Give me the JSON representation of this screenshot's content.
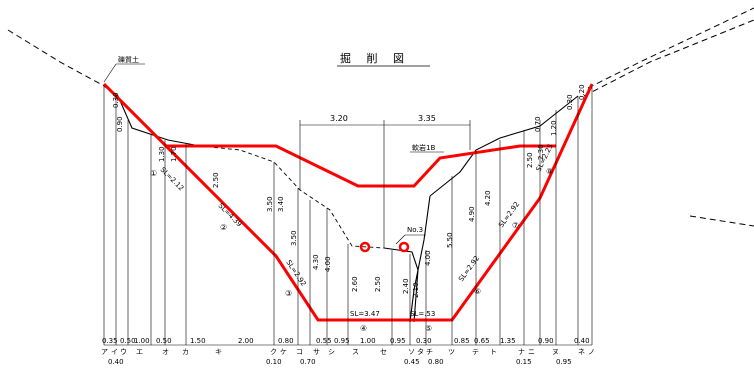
{
  "title": "掘 削 図",
  "annotations": {
    "soil_upper": "礫質土",
    "rock": "軟岩1B",
    "point_no": "No.3"
  },
  "top_dims": {
    "left": "3.20",
    "right": "3.35"
  },
  "slopes": {
    "s1": "SL=2.12",
    "s2": "SL=4.39",
    "s3": "SL=2.92",
    "s4": "SL=3.47",
    "s5": "SL=.53",
    "s6": "SL=2.92",
    "s7": "SL=2.92",
    "s8": "SL=2.25"
  },
  "circled": [
    "①",
    "②",
    "③",
    "④",
    "⑤",
    "⑥",
    "⑦",
    "⑧"
  ],
  "verticals": {
    "v1": "0.30",
    "v2": "0.90",
    "v3": "1.30",
    "v4": "1.70",
    "v5": "2.50",
    "v6": "3.50",
    "v7": "3.40",
    "v8": "3.50",
    "v9": "4.30",
    "v10": "4.00",
    "v11": "2.60",
    "v12": "2.50",
    "v13": "2.40",
    "v14": "2.10",
    "v15": "4.00",
    "v16": "5.50",
    "v17": "4.90",
    "v18": "4.20",
    "v19": "2.50",
    "v20": "2.30",
    "v21": "1.20",
    "v22": "0.70",
    "v23": "0.30",
    "v24": "0.20"
  },
  "bottom_dims": [
    "0.35",
    "0.50",
    "1.00",
    "0.50",
    "1.50",
    "2.00",
    "0.80",
    "0.55",
    "0.95",
    "1.00",
    "0.95",
    "0.30",
    "0.85",
    "0.65",
    "1.35",
    "0.90",
    "0.40"
  ],
  "bottom_sub": [
    "0.40",
    "0.10",
    "0.70",
    "0.45",
    "0.80",
    "0.15",
    "0.95"
  ],
  "kana_left": [
    "ア",
    "イ",
    "ウ",
    "エ",
    "オ",
    "カ",
    "キ",
    "ク",
    "ケ",
    "コ",
    "サ",
    "シ",
    "ス",
    "セ"
  ],
  "kana_right": [
    "ソ",
    "タ",
    "チ",
    "ツ",
    "テ",
    "ト",
    "ナ",
    "ニ",
    "ヌ",
    "ネ",
    "ノ"
  ]
}
